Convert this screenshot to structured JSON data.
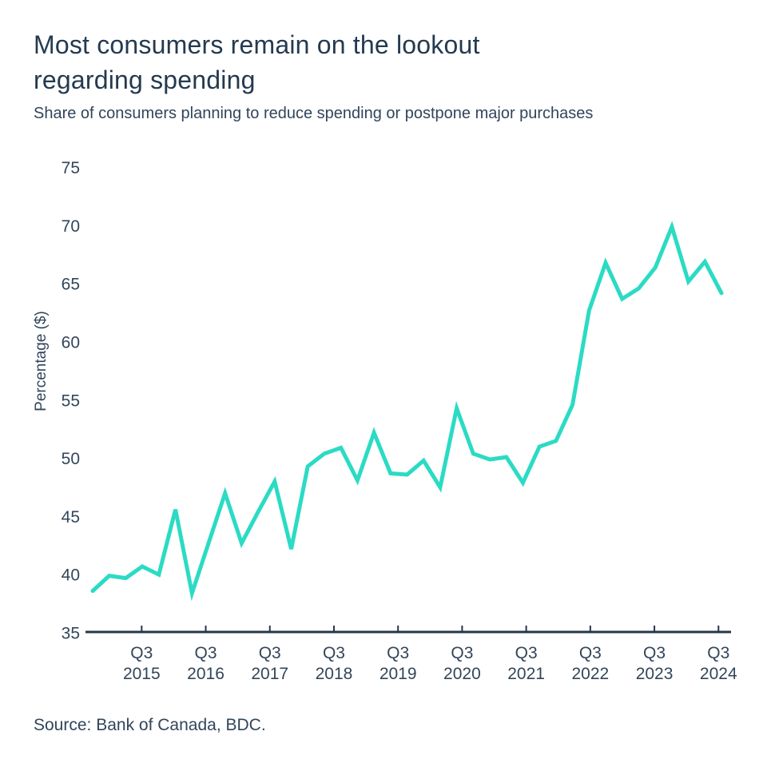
{
  "header": {
    "title_line1": "Most consumers remain on the lookout",
    "title_line2": "regarding spending",
    "subtitle": "Share of consumers planning to reduce spending or postpone major purchases"
  },
  "footer": {
    "source": "Source: Bank of Canada, BDC."
  },
  "colors": {
    "line": "#2bdbc4",
    "axis": "#24374a",
    "tick_text": "#32465a",
    "background": "#ffffff"
  },
  "chart_data": {
    "type": "line",
    "title": "Most consumers remain on the lookout regarding spending",
    "subtitle": "Share of consumers planning to reduce spending or postpone major purchases",
    "xlabel": "",
    "ylabel": "Percentage ($)",
    "ylim": [
      35,
      75
    ],
    "yticks": [
      35,
      40,
      45,
      50,
      55,
      60,
      65,
      70,
      75
    ],
    "xticks": [
      {
        "quarter": "Q3",
        "year": "2015"
      },
      {
        "quarter": "Q3",
        "year": "2016"
      },
      {
        "quarter": "Q3",
        "year": "2017"
      },
      {
        "quarter": "Q3",
        "year": "2018"
      },
      {
        "quarter": "Q3",
        "year": "2019"
      },
      {
        "quarter": "Q3",
        "year": "2020"
      },
      {
        "quarter": "Q3",
        "year": "2021"
      },
      {
        "quarter": "Q3",
        "year": "2022"
      },
      {
        "quarter": "Q3",
        "year": "2023"
      },
      {
        "quarter": "Q3",
        "year": "2024"
      }
    ],
    "grid": false,
    "legend": false,
    "series": [
      {
        "name": "Share of consumers planning to reduce spending or postpone major purchases",
        "x": [
          "2015 Q1",
          "2015 Q2",
          "2015 Q3",
          "2015 Q4",
          "2016 Q1",
          "2016 Q2",
          "2016 Q3",
          "2016 Q4",
          "2017 Q1",
          "2017 Q2",
          "2017 Q3",
          "2017 Q4",
          "2018 Q1",
          "2018 Q2",
          "2018 Q3",
          "2018 Q4",
          "2019 Q1",
          "2019 Q2",
          "2019 Q3",
          "2019 Q4",
          "2020 Q1",
          "2020 Q2",
          "2020 Q3",
          "2020 Q4",
          "2021 Q1",
          "2021 Q2",
          "2021 Q3",
          "2021 Q4",
          "2022 Q1",
          "2022 Q2",
          "2022 Q3",
          "2022 Q4",
          "2023 Q1",
          "2023 Q2",
          "2023 Q3",
          "2023 Q4",
          "2024 Q1",
          "2024 Q2",
          "2024 Q3"
        ],
        "values": [
          38.6,
          39.9,
          39.7,
          40.7,
          40.0,
          45.6,
          38.4,
          42.7,
          47.0,
          42.7,
          45.4,
          48.0,
          42.2,
          49.3,
          50.4,
          50.9,
          48.1,
          52.2,
          48.7,
          48.6,
          49.8,
          47.5,
          54.3,
          50.4,
          49.9,
          50.1,
          47.9,
          51.0,
          51.5,
          54.6,
          62.7,
          66.8,
          63.7,
          64.6,
          66.4,
          69.9,
          65.2,
          66.9,
          64.2
        ]
      }
    ]
  }
}
